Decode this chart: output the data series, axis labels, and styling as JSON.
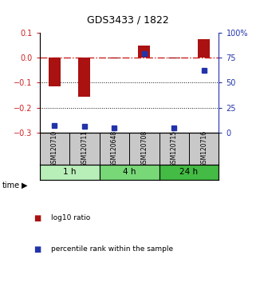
{
  "title": "GDS3433 / 1822",
  "samples": [
    "GSM120710",
    "GSM120711",
    "GSM120648",
    "GSM120708",
    "GSM120715",
    "GSM120716"
  ],
  "log10_ratio": [
    -0.115,
    -0.155,
    -0.003,
    0.048,
    -0.002,
    0.075
  ],
  "percentile_rank": [
    7,
    6,
    5,
    79,
    5,
    62
  ],
  "groups": [
    {
      "label": "1 h",
      "samples": [
        0,
        1
      ],
      "color": "#b8eeb8"
    },
    {
      "label": "4 h",
      "samples": [
        2,
        3
      ],
      "color": "#78d878"
    },
    {
      "label": "24 h",
      "samples": [
        4,
        5
      ],
      "color": "#44bb44"
    }
  ],
  "bar_color": "#aa1111",
  "dot_color": "#2233aa",
  "ylim_left": [
    -0.3,
    0.1
  ],
  "ylim_right": [
    0,
    100
  ],
  "hline_zero_color": "#cc2222",
  "grid_color": "#111111",
  "background_color": "#ffffff",
  "sample_box_color": "#c8c8c8",
  "legend_items": [
    "log10 ratio",
    "percentile rank within the sample"
  ],
  "left_yticks": [
    -0.3,
    -0.2,
    -0.1,
    0.0,
    0.1
  ],
  "right_yticks": [
    0,
    25,
    50,
    75,
    100
  ]
}
